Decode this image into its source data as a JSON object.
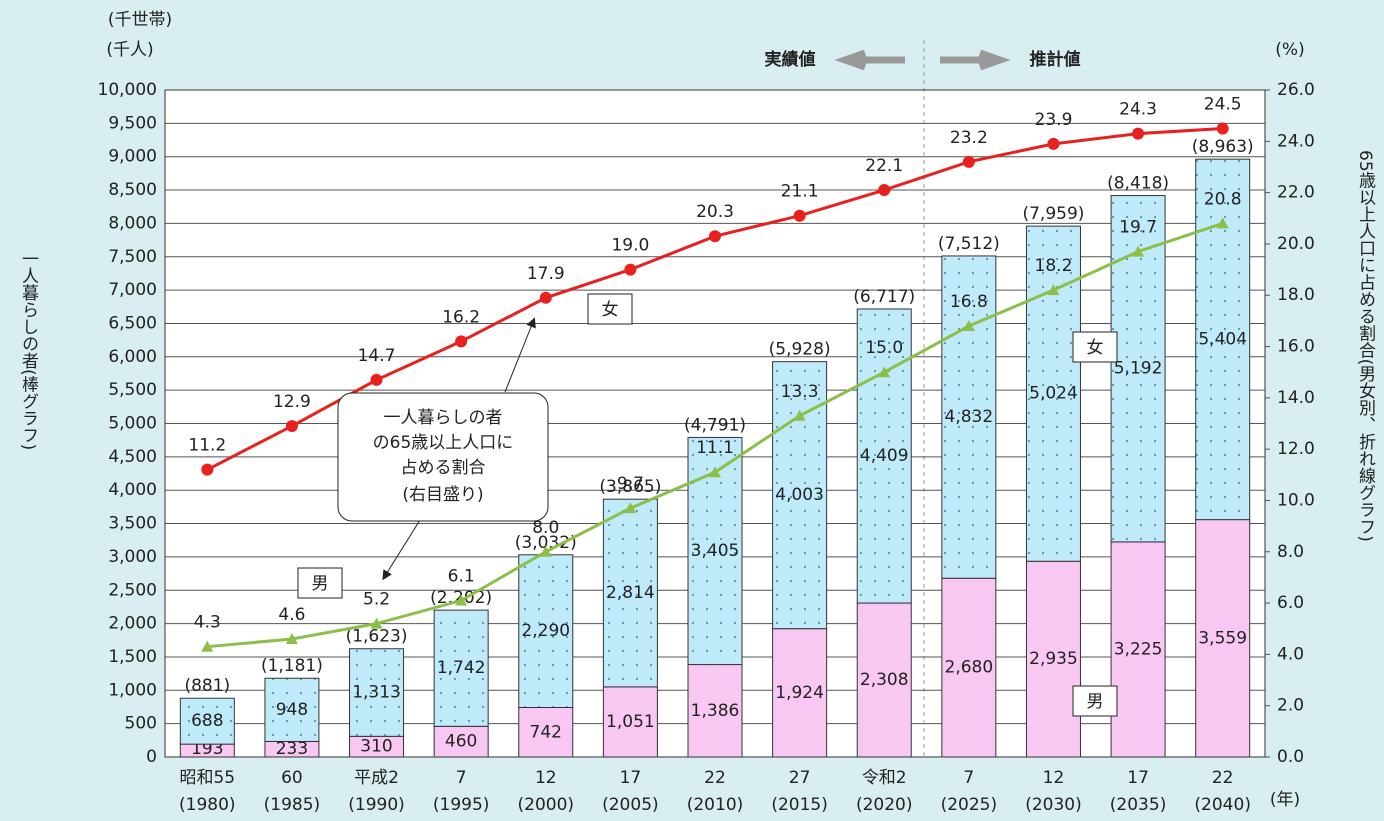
{
  "chart_data": {
    "type": "bar",
    "units_left": [
      "(千世帯)",
      "(千人)"
    ],
    "units_right": "(%)",
    "year_unit": "(年)",
    "y_title": "一人暮らしの者(棒グラフ)",
    "y2_title": "65歳以上人口に占める割合(男女別、折れ線グラフ)",
    "actual_label": "実績値",
    "forecast_label": "推計値",
    "annotation": [
      "一人暮らしの者",
      "の65歳以上人口に",
      "占める割合",
      "(右目盛り)"
    ],
    "female_tag": "女",
    "male_tag": "男",
    "categories": [
      "昭和55",
      "60",
      "平成2",
      "7",
      "12",
      "17",
      "22",
      "27",
      "令和2",
      "7",
      "12",
      "17",
      "22"
    ],
    "category_years": [
      "(1980)",
      "(1985)",
      "(1990)",
      "(1995)",
      "(2000)",
      "(2005)",
      "(2010)",
      "(2015)",
      "(2020)",
      "(2025)",
      "(2030)",
      "(2035)",
      "(2040)"
    ],
    "series": [
      {
        "name": "男",
        "color": "#f8c8f2",
        "values": [
          193,
          233,
          310,
          460,
          742,
          1051,
          1386,
          1924,
          2308,
          2680,
          2935,
          3225,
          3559
        ],
        "value_labels": [
          "193",
          "233",
          "310",
          "460",
          "742",
          "1,051",
          "1,386",
          "1,924",
          "2,308",
          "2,680",
          "2,935",
          "3,225",
          "3,559"
        ]
      },
      {
        "name": "女",
        "color": "#bfeafa",
        "values": [
          688,
          948,
          1313,
          1742,
          2290,
          2814,
          3405,
          4003,
          4409,
          4832,
          5024,
          5192,
          5404
        ],
        "value_labels": [
          "688",
          "948",
          "1,313",
          "1,742",
          "2,290",
          "2,814",
          "3,405",
          "4,003",
          "4,409",
          "4,832",
          "5,024",
          "5,192",
          "5,404"
        ]
      },
      {
        "name": "女",
        "type": "line",
        "axis": "y2",
        "color": "#e8201e",
        "values": [
          11.2,
          12.9,
          14.7,
          16.2,
          17.9,
          19.0,
          20.3,
          21.1,
          22.1,
          23.2,
          23.9,
          24.3,
          24.5
        ],
        "value_labels": [
          "11.2",
          "12.9",
          "14.7",
          "16.2",
          "17.9",
          "19.0",
          "20.3",
          "21.1",
          "22.1",
          "23.2",
          "23.9",
          "24.3",
          "24.5"
        ]
      },
      {
        "name": "男",
        "type": "line",
        "axis": "y2",
        "color": "#8cbf4a",
        "values": [
          4.3,
          4.6,
          5.2,
          6.1,
          8.0,
          9.7,
          11.1,
          13.3,
          15.0,
          16.8,
          18.2,
          19.7,
          20.8
        ],
        "value_labels": [
          "4.3",
          "4.6",
          "5.2",
          "6.1",
          "8.0",
          "9.7",
          "11.1",
          "13.3",
          "15.0",
          "16.8",
          "18.2",
          "19.7",
          "20.8"
        ]
      }
    ],
    "totals": {
      "values": [
        881,
        1181,
        1623,
        2202,
        3032,
        3865,
        4791,
        5928,
        6717,
        7512,
        7959,
        8418,
        8963
      ],
      "value_labels": [
        "(881)",
        "(1,181)",
        "(1,623)",
        "(2,202)",
        "(3,032)",
        "(3,865)",
        "(4,791)",
        "(5,928)",
        "(6,717)",
        "(7,512)",
        "(7,959)",
        "(8,418)",
        "(8,963)"
      ]
    },
    "ylim": [
      0,
      10000
    ],
    "yticks": [
      0,
      500,
      {
        "value": 1000,
        "label": "1,000"
      },
      {
        "value": 1500,
        "label": "1,500"
      },
      {
        "value": 2000,
        "label": "2,000"
      },
      {
        "value": 2500,
        "label": "2,500"
      },
      {
        "value": 3000,
        "label": "3,000"
      },
      {
        "value": 3500,
        "label": "3,500"
      },
      {
        "value": 4000,
        "label": "4,000"
      },
      {
        "value": 4500,
        "label": "4,500"
      },
      {
        "value": 5000,
        "label": "5,000"
      },
      {
        "value": 5500,
        "label": "5,500"
      },
      {
        "value": 6000,
        "label": "6,000"
      },
      {
        "value": 6500,
        "label": "6,500"
      },
      {
        "value": 7000,
        "label": "7,000"
      },
      {
        "value": 7500,
        "label": "7,500"
      },
      {
        "value": 8000,
        "label": "8,000"
      },
      {
        "value": 8500,
        "label": "8,500"
      },
      {
        "value": 9000,
        "label": "9,000"
      },
      {
        "value": 9500,
        "label": "9,500"
      },
      {
        "value": 10000,
        "label": "10,000"
      }
    ],
    "y2lim": [
      0,
      26
    ],
    "y2ticks": [
      {
        "value": 0,
        "label": "0.0"
      },
      {
        "value": 2,
        "label": "2.0"
      },
      {
        "value": 4,
        "label": "4.0"
      },
      {
        "value": 6,
        "label": "6.0"
      },
      {
        "value": 8,
        "label": "8.0"
      },
      {
        "value": 10,
        "label": "10.0"
      },
      {
        "value": 12,
        "label": "12.0"
      },
      {
        "value": 14,
        "label": "14.0"
      },
      {
        "value": 16,
        "label": "16.0"
      },
      {
        "value": 18,
        "label": "18.0"
      },
      {
        "value": 20,
        "label": "20.0"
      },
      {
        "value": 22,
        "label": "22.0"
      },
      {
        "value": 24,
        "label": "24.0"
      },
      {
        "value": 26,
        "label": "26.0"
      }
    ],
    "grid": true
  }
}
